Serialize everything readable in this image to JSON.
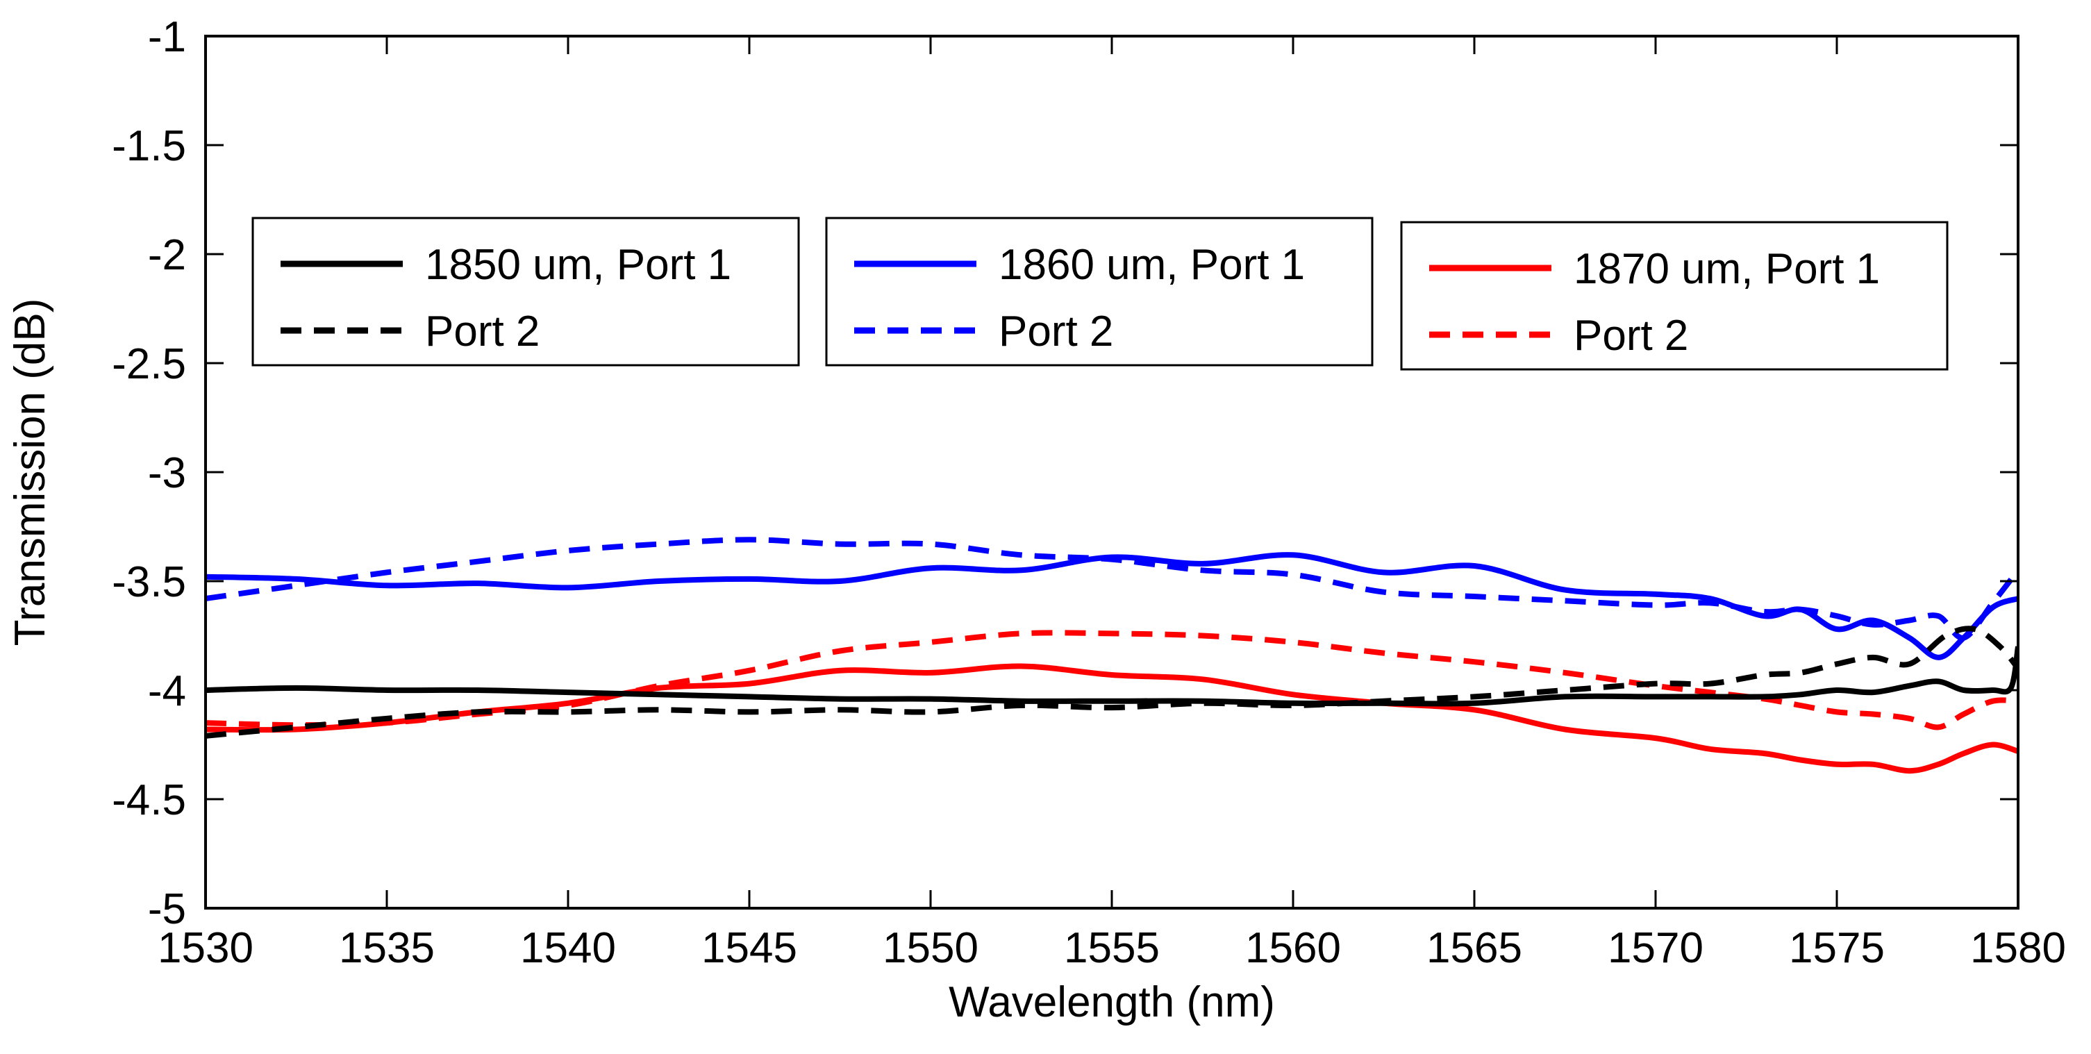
{
  "chart_data": {
    "type": "line",
    "title": "",
    "xlabel": "Wavelength (nm)",
    "ylabel": "Transmission (dB)",
    "xlim": [
      1530,
      1580
    ],
    "ylim": [
      -5,
      -1
    ],
    "xticks": [
      1530,
      1535,
      1540,
      1545,
      1550,
      1555,
      1560,
      1565,
      1570,
      1575,
      1580
    ],
    "yticks": [
      -5,
      -4.5,
      -4,
      -3.5,
      -3,
      -2.5,
      -2,
      -1.5,
      -1
    ],
    "xtick_labels": [
      "1530",
      "1535",
      "1540",
      "1545",
      "1550",
      "1555",
      "1560",
      "1565",
      "1570",
      "1575",
      "1580"
    ],
    "ytick_labels": [
      "-5",
      "-4.5",
      "-4",
      "-3.5",
      "-3",
      "-2.5",
      "-2",
      "-1.5",
      "-1"
    ],
    "grid": false,
    "legends": [
      {
        "placement": "upper-left",
        "entries": [
          {
            "label": "1850 um, Port 1",
            "series": "s1850p1"
          },
          {
            "label": "Port 2",
            "series": "s1850p2"
          }
        ]
      },
      {
        "placement": "upper-center",
        "entries": [
          {
            "label": "1860 um, Port 1",
            "series": "s1860p1"
          },
          {
            "label": "Port 2",
            "series": "s1860p2"
          }
        ]
      },
      {
        "placement": "upper-right",
        "entries": [
          {
            "label": "1870 um, Port 1",
            "series": "s1870p1"
          },
          {
            "label": "Port 2",
            "series": "s1870p2"
          }
        ]
      }
    ],
    "series": [
      {
        "id": "s1850p1",
        "name": "1850 um, Port 1",
        "color": "#000000",
        "dash": "solid",
        "x": [
          1530,
          1532.5,
          1535,
          1537.5,
          1540,
          1542.5,
          1545,
          1547.5,
          1550,
          1552.5,
          1555,
          1557.5,
          1560,
          1562.5,
          1565,
          1567.5,
          1570,
          1571.5,
          1573,
          1574,
          1575,
          1576,
          1577,
          1577.8,
          1578.5,
          1579.3,
          1579.8,
          1580
        ],
        "y": [
          -4.0,
          -3.99,
          -4.0,
          -4.0,
          -4.01,
          -4.02,
          -4.03,
          -4.04,
          -4.04,
          -4.05,
          -4.05,
          -4.05,
          -4.06,
          -4.06,
          -4.06,
          -4.03,
          -4.03,
          -4.03,
          -4.03,
          -4.02,
          -4.0,
          -4.01,
          -3.98,
          -3.96,
          -4.0,
          -4.0,
          -3.99,
          -3.8
        ]
      },
      {
        "id": "s1850p2",
        "name": "Port 2",
        "color": "#000000",
        "dash": "dashed",
        "x": [
          1530,
          1532.5,
          1535,
          1537.5,
          1540,
          1542.5,
          1545,
          1547.5,
          1550,
          1552.5,
          1555,
          1557.5,
          1560,
          1562.5,
          1565,
          1567.5,
          1570,
          1571.5,
          1573,
          1574,
          1575,
          1576,
          1577,
          1578,
          1578.8,
          1579.5,
          1580
        ],
        "y": [
          -4.21,
          -4.17,
          -4.13,
          -4.1,
          -4.1,
          -4.09,
          -4.1,
          -4.09,
          -4.1,
          -4.07,
          -4.08,
          -4.06,
          -4.07,
          -4.05,
          -4.03,
          -4.0,
          -3.97,
          -3.97,
          -3.93,
          -3.92,
          -3.88,
          -3.85,
          -3.88,
          -3.75,
          -3.72,
          -3.8,
          -3.9
        ]
      },
      {
        "id": "s1860p1",
        "name": "1860 um, Port 1",
        "color": "#0000ff",
        "dash": "solid",
        "x": [
          1530,
          1532.5,
          1535,
          1537.5,
          1540,
          1542.5,
          1545,
          1547.5,
          1550,
          1552.5,
          1555,
          1557.5,
          1560,
          1562.5,
          1565,
          1567.5,
          1570,
          1571.5,
          1573,
          1574,
          1575,
          1576,
          1577,
          1577.8,
          1578.5,
          1579.3,
          1580
        ],
        "y": [
          -3.48,
          -3.49,
          -3.52,
          -3.51,
          -3.53,
          -3.5,
          -3.49,
          -3.5,
          -3.44,
          -3.45,
          -3.39,
          -3.42,
          -3.38,
          -3.46,
          -3.43,
          -3.54,
          -3.56,
          -3.58,
          -3.66,
          -3.63,
          -3.72,
          -3.68,
          -3.76,
          -3.85,
          -3.76,
          -3.62,
          -3.58
        ]
      },
      {
        "id": "s1860p2",
        "name": "Port 2",
        "color": "#0000ff",
        "dash": "dashed",
        "x": [
          1530,
          1532.5,
          1535,
          1537.5,
          1540,
          1542.5,
          1545,
          1547.5,
          1550,
          1552.5,
          1555,
          1557.5,
          1560,
          1562.5,
          1565,
          1567.5,
          1570,
          1571.5,
          1573,
          1574,
          1575,
          1576,
          1577,
          1577.8,
          1578.5,
          1579.3,
          1580
        ],
        "y": [
          -3.58,
          -3.52,
          -3.46,
          -3.41,
          -3.36,
          -3.33,
          -3.31,
          -3.33,
          -3.33,
          -3.38,
          -3.4,
          -3.45,
          -3.47,
          -3.55,
          -3.57,
          -3.59,
          -3.61,
          -3.6,
          -3.64,
          -3.63,
          -3.66,
          -3.7,
          -3.68,
          -3.66,
          -3.76,
          -3.6,
          -3.45
        ]
      },
      {
        "id": "s1870p1",
        "name": "1870 um, Port 1",
        "color": "#ff0000",
        "dash": "solid",
        "x": [
          1530,
          1532.5,
          1535,
          1537.5,
          1540,
          1542.5,
          1545,
          1547.5,
          1550,
          1552.5,
          1555,
          1557.5,
          1560,
          1562.5,
          1565,
          1567.5,
          1570,
          1571.5,
          1573,
          1574,
          1575,
          1576,
          1577,
          1577.8,
          1578.5,
          1579.3,
          1580
        ],
        "y": [
          -4.18,
          -4.18,
          -4.15,
          -4.1,
          -4.06,
          -3.99,
          -3.97,
          -3.91,
          -3.92,
          -3.89,
          -3.93,
          -3.95,
          -4.02,
          -4.06,
          -4.09,
          -4.18,
          -4.22,
          -4.27,
          -4.29,
          -4.32,
          -4.34,
          -4.34,
          -4.37,
          -4.34,
          -4.29,
          -4.25,
          -4.28
        ]
      },
      {
        "id": "s1870p2",
        "name": "Port 2",
        "color": "#ff0000",
        "dash": "dashed",
        "x": [
          1530,
          1532.5,
          1535,
          1537.5,
          1540,
          1542.5,
          1545,
          1547.5,
          1550,
          1552.5,
          1555,
          1557.5,
          1560,
          1562.5,
          1565,
          1567.5,
          1570,
          1571.5,
          1573,
          1574,
          1575,
          1576,
          1577,
          1577.8,
          1578.5,
          1579.3,
          1580
        ],
        "y": [
          -4.15,
          -4.16,
          -4.15,
          -4.11,
          -4.07,
          -3.98,
          -3.91,
          -3.82,
          -3.78,
          -3.74,
          -3.74,
          -3.75,
          -3.78,
          -3.83,
          -3.87,
          -3.92,
          -3.98,
          -4.01,
          -4.04,
          -4.07,
          -4.1,
          -4.11,
          -4.13,
          -4.17,
          -4.11,
          -4.05,
          -4.05
        ]
      }
    ]
  }
}
